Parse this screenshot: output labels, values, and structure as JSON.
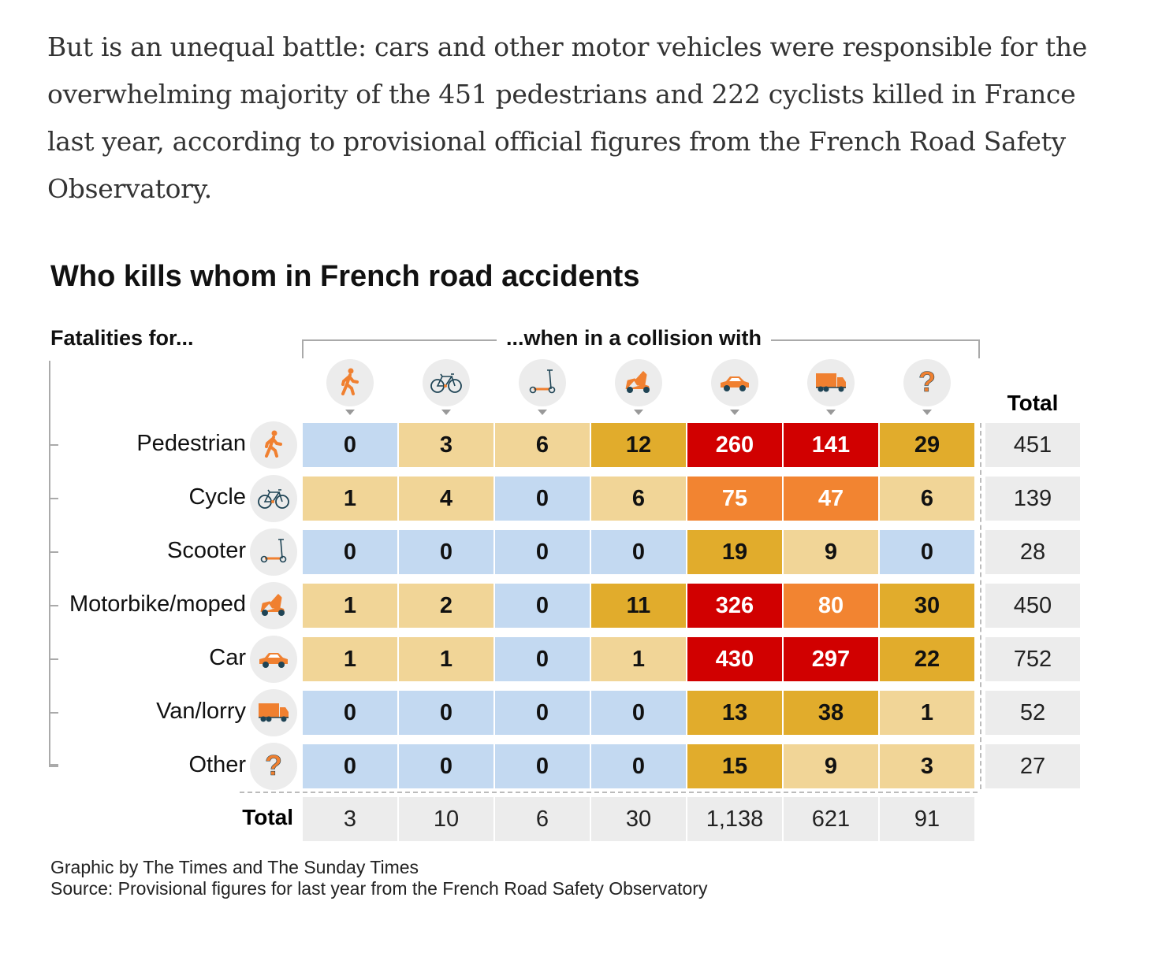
{
  "intro_text": "But is an unequal battle: cars and other motor vehicles were responsible for the overwhelming majority of the 451 pedestrians and 222 cyclists killed in France last year, according to provisional official figures from the French Road Safety Observatory.",
  "colors": {
    "zero": "#c3d9f1",
    "low": "#f1d597",
    "mid": "#e1ac2c",
    "high": "#f28431",
    "top": "#d10000",
    "icon": "#f08030",
    "icon_dark": "#1f4455"
  },
  "chart_data": {
    "type": "heatmap",
    "title": "Who kills whom in French road accidents",
    "row_header": "Fatalities for...",
    "column_header": "...when in a collision with",
    "total_label": "Total",
    "columns": [
      "pedestrian",
      "cycle",
      "scooter",
      "motorbike",
      "car",
      "van",
      "other"
    ],
    "rows": [
      {
        "label": "Pedestrian",
        "icon": "pedestrian",
        "values": [
          0,
          3,
          6,
          12,
          260,
          141,
          29
        ],
        "total": "451"
      },
      {
        "label": "Cycle",
        "icon": "cycle",
        "values": [
          1,
          4,
          0,
          6,
          75,
          47,
          6
        ],
        "total": "139"
      },
      {
        "label": "Scooter",
        "icon": "scooter",
        "values": [
          0,
          0,
          0,
          0,
          19,
          9,
          0
        ],
        "total": "28"
      },
      {
        "label": "Motorbike/moped",
        "icon": "motorbike",
        "values": [
          1,
          2,
          0,
          11,
          326,
          80,
          30
        ],
        "total": "450"
      },
      {
        "label": "Car",
        "icon": "car",
        "values": [
          1,
          1,
          0,
          1,
          430,
          297,
          22
        ],
        "total": "752"
      },
      {
        "label": "Van/lorry",
        "icon": "van",
        "values": [
          0,
          0,
          0,
          0,
          13,
          38,
          1
        ],
        "total": "52"
      },
      {
        "label": "Other",
        "icon": "other",
        "values": [
          0,
          0,
          0,
          0,
          15,
          9,
          3
        ],
        "total": "27"
      }
    ],
    "column_totals": [
      "3",
      "10",
      "6",
      "30",
      "1,138",
      "621",
      "91"
    ]
  },
  "credit": {
    "line1": "Graphic by The Times and The Sunday Times",
    "line2": "Source: Provisional figures for last year from the French Road Safety Observatory"
  }
}
